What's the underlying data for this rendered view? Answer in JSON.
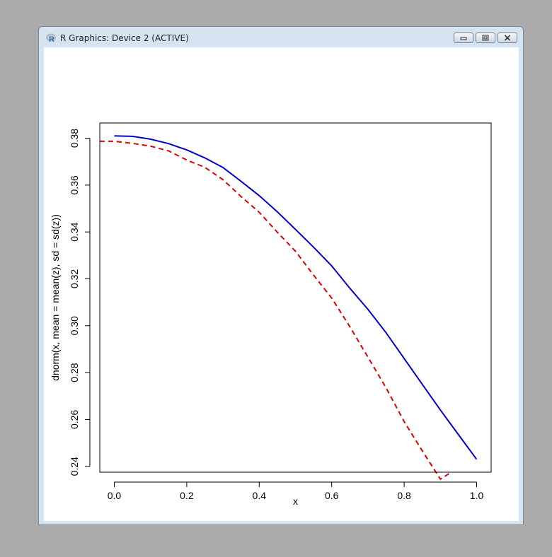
{
  "window": {
    "title": "R Graphics: Device 2 (ACTIVE)",
    "icon": "r-logo-icon",
    "buttons": [
      "minimize-icon",
      "restore-icon",
      "close-icon"
    ]
  },
  "chart_data": {
    "type": "line",
    "xlabel": "x",
    "ylabel": "dnorm(x, mean = mean(z), sd = sd(z))",
    "xlim": [
      -0.04,
      1.04
    ],
    "ylim": [
      0.2375,
      0.3865
    ],
    "xticks": [
      "0.0",
      "0.2",
      "0.4",
      "0.6",
      "0.8",
      "1.0"
    ],
    "yticks": [
      "0.24",
      "0.26",
      "0.28",
      "0.30",
      "0.32",
      "0.34",
      "0.36",
      "0.38"
    ],
    "grid": false,
    "series": [
      {
        "color": "#0000cc",
        "dash": "solid",
        "x": [
          0.0,
          0.05,
          0.1,
          0.15,
          0.2,
          0.25,
          0.3,
          0.35,
          0.4,
          0.45,
          0.5,
          0.55,
          0.6,
          0.65,
          0.7,
          0.75,
          0.8,
          0.85,
          0.9,
          0.95,
          1.0
        ],
        "y": [
          0.381,
          0.3808,
          0.3796,
          0.3777,
          0.375,
          0.3716,
          0.3675,
          0.3616,
          0.3555,
          0.3486,
          0.3411,
          0.3335,
          0.3255,
          0.316,
          0.307,
          0.297,
          0.286,
          0.275,
          0.264,
          0.2535,
          0.243
        ]
      },
      {
        "color": "#dd0000",
        "dash": "dashed",
        "x": [
          -0.04,
          0.0,
          0.05,
          0.1,
          0.15,
          0.2,
          0.25,
          0.3,
          0.35,
          0.4,
          0.45,
          0.5,
          0.55,
          0.6,
          0.65,
          0.7,
          0.75,
          0.8,
          0.85,
          0.9,
          0.93
        ],
        "y": [
          0.3787,
          0.3787,
          0.3778,
          0.3766,
          0.3746,
          0.3707,
          0.3676,
          0.3623,
          0.3551,
          0.3484,
          0.3399,
          0.3318,
          0.3216,
          0.3118,
          0.2996,
          0.2866,
          0.2735,
          0.2591,
          0.2466,
          0.2345,
          0.2375
        ]
      }
    ]
  }
}
